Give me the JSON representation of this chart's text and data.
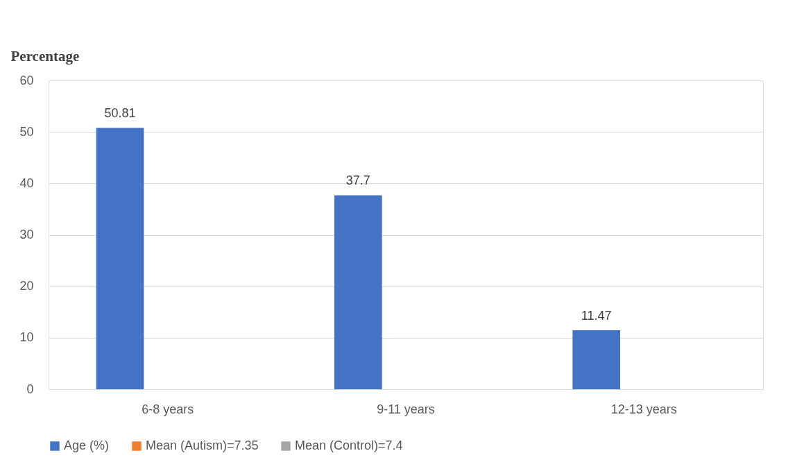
{
  "chart_data": {
    "type": "bar",
    "ylabel": "Percentage",
    "categories": [
      "6-8 years",
      "9-11 years",
      "12-13 years"
    ],
    "series": [
      {
        "name": "Age (%)",
        "color": "#4472c4",
        "values": [
          50.81,
          37.7,
          11.47
        ]
      },
      {
        "name": "Mean (Autism)=7.35",
        "color": "#ed7d31",
        "values": [
          null,
          null,
          null
        ]
      },
      {
        "name": "Mean (Control)=7.4",
        "color": "#a5a5a5",
        "values": [
          null,
          null,
          null
        ]
      }
    ],
    "ylim": [
      0,
      60
    ],
    "yticks": [
      0,
      10,
      20,
      30,
      40,
      50,
      60
    ],
    "grid": "y",
    "legend": "bottom",
    "data_labels": true
  }
}
